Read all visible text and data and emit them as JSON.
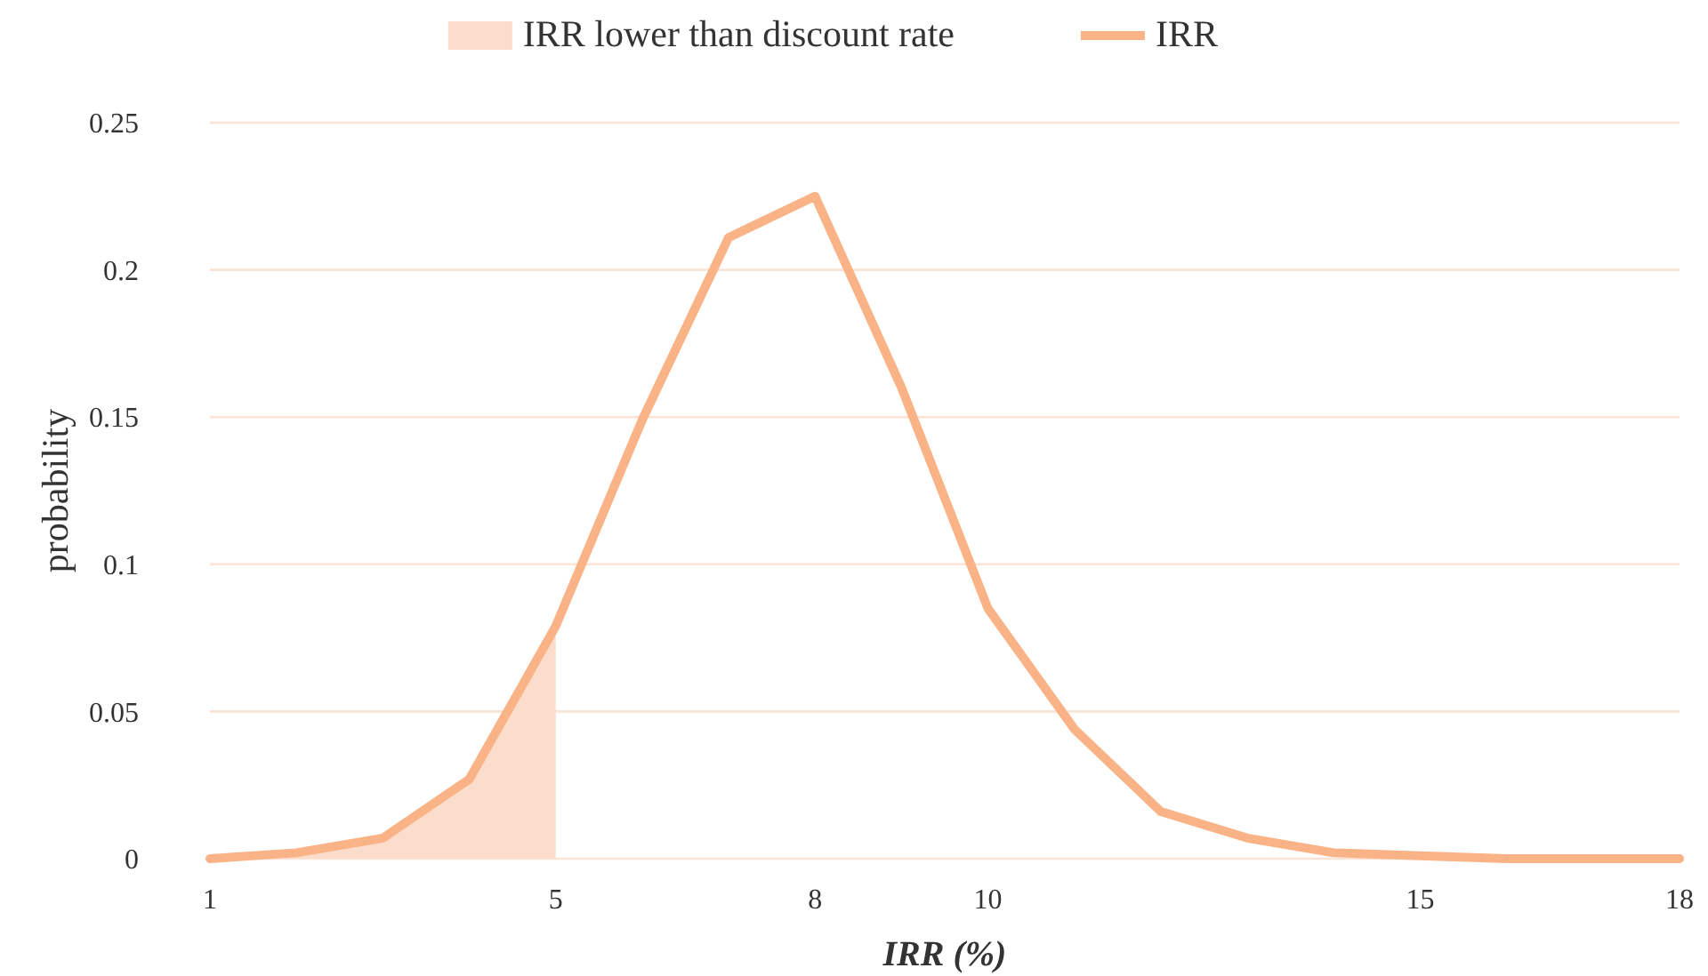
{
  "chart_data": {
    "type": "line",
    "xlabel": "IRR (%)",
    "ylabel": "probability",
    "xlim": [
      1,
      18
    ],
    "xticks": [
      1,
      5,
      8,
      10,
      15,
      18
    ],
    "ylim": [
      0,
      0.25
    ],
    "yticks": [
      0,
      0.05,
      0.1,
      0.15,
      0.2,
      0.25
    ],
    "grid": "y",
    "legend": "top",
    "marker": "none",
    "line_style": "solid",
    "series": [
      {
        "name": "IRR lower than discount rate",
        "type": "area",
        "color": "#fcdcca",
        "x": [
          1,
          2,
          3,
          4,
          5
        ],
        "values": [
          0,
          0.002,
          0.007,
          0.027,
          0.079
        ]
      },
      {
        "name": "IRR",
        "color": "#f9b386",
        "x": [
          1,
          2,
          3,
          4,
          5,
          6,
          7,
          8,
          9,
          10,
          11,
          12,
          13,
          14,
          15,
          16,
          17,
          18
        ],
        "values": [
          0,
          0.002,
          0.007,
          0.027,
          0.079,
          0.149,
          0.211,
          0.225,
          0.16,
          0.085,
          0.044,
          0.016,
          0.007,
          0.002,
          0.001,
          0,
          0,
          0
        ]
      }
    ]
  }
}
